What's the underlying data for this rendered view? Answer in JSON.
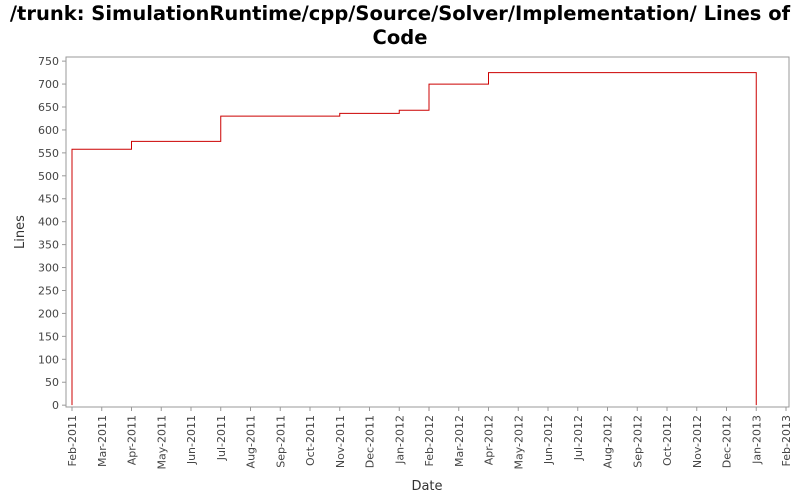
{
  "chart_data": {
    "type": "step",
    "title": "/trunk: SimulationRuntime/cpp/Source/Solver/Implementation/ Lines of Code",
    "x_label": "Date",
    "y_label": "Lines",
    "color": "#cc0000",
    "x": [
      "2011-02",
      "2011-02",
      "2011-04",
      "2011-07",
      "2011-11",
      "2012-01",
      "2012-02",
      "2012-04",
      "2013-01"
    ],
    "values": [
      0,
      558,
      575,
      630,
      636,
      643,
      700,
      725,
      0
    ],
    "xlim": [
      "2011-02",
      "2013-02"
    ],
    "xticks": [
      {
        "value": "2011-02",
        "label": "Feb-2011"
      },
      {
        "value": "2011-03",
        "label": "Mar-2011"
      },
      {
        "value": "2011-04",
        "label": "Apr-2011"
      },
      {
        "value": "2011-05",
        "label": "May-2011"
      },
      {
        "value": "2011-06",
        "label": "Jun-2011"
      },
      {
        "value": "2011-07",
        "label": "Jul-2011"
      },
      {
        "value": "2011-08",
        "label": "Aug-2011"
      },
      {
        "value": "2011-09",
        "label": "Sep-2011"
      },
      {
        "value": "2011-10",
        "label": "Oct-2011"
      },
      {
        "value": "2011-11",
        "label": "Nov-2011"
      },
      {
        "value": "2011-12",
        "label": "Dec-2011"
      },
      {
        "value": "2012-01",
        "label": "Jan-2012"
      },
      {
        "value": "2012-02",
        "label": "Feb-2012"
      },
      {
        "value": "2012-03",
        "label": "Mar-2012"
      },
      {
        "value": "2012-04",
        "label": "Apr-2012"
      },
      {
        "value": "2012-05",
        "label": "May-2012"
      },
      {
        "value": "2012-06",
        "label": "Jun-2012"
      },
      {
        "value": "2012-07",
        "label": "Jul-2012"
      },
      {
        "value": "2012-08",
        "label": "Aug-2012"
      },
      {
        "value": "2012-09",
        "label": "Sep-2012"
      },
      {
        "value": "2012-10",
        "label": "Oct-2012"
      },
      {
        "value": "2012-11",
        "label": "Nov-2012"
      },
      {
        "value": "2012-12",
        "label": "Dec-2012"
      },
      {
        "value": "2013-01",
        "label": "Jan-2013"
      },
      {
        "value": "2013-02",
        "label": "Feb-2013"
      }
    ],
    "ylim": [
      -4,
      759
    ],
    "yticks": [
      0,
      50,
      100,
      150,
      200,
      250,
      300,
      350,
      400,
      450,
      500,
      550,
      600,
      650,
      700,
      750
    ],
    "grid": false
  }
}
